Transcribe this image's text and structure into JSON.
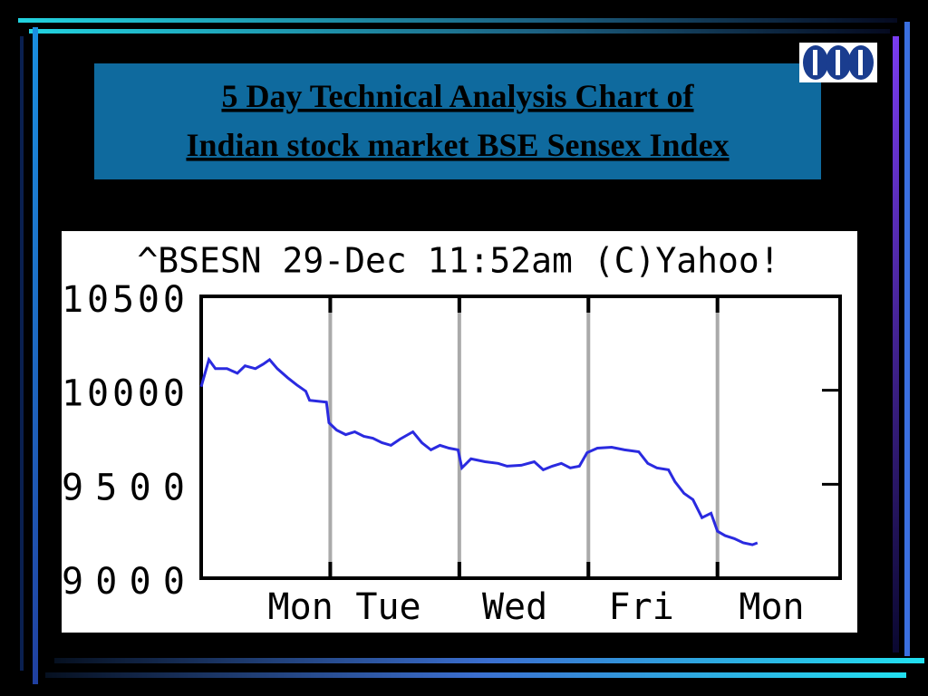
{
  "chart_data": {
    "type": "line",
    "title_lines": [
      "5 Day Technical Analysis Chart of",
      "Indian stock market BSE Sensex Index"
    ],
    "chart_header": "^BSESN 29-Dec 11:52am (C)Yahoo!",
    "xlim": [
      0,
      4.95
    ],
    "xticks": [
      {
        "value": 0.77,
        "label": "Mon"
      },
      {
        "value": 1.45,
        "label": "Tue"
      },
      {
        "value": 2.43,
        "label": "Wed"
      },
      {
        "value": 3.41,
        "label": "Fri"
      },
      {
        "value": 4.42,
        "label": "Mon"
      }
    ],
    "day_lines": [
      1,
      2,
      3,
      4
    ],
    "ylim": [
      9000,
      10500
    ],
    "yticks": [
      9000,
      9500,
      10000,
      10500
    ],
    "series": [
      {
        "color": "#2a2ae0",
        "x": [
          0,
          0.06,
          0.11,
          0.2,
          0.28,
          0.34,
          0.42,
          0.48,
          0.53,
          0.59,
          0.67,
          0.74,
          0.81,
          0.84,
          0.97,
          0.99,
          1.05,
          1.12,
          1.19,
          1.26,
          1.33,
          1.4,
          1.47,
          1.54,
          1.64,
          1.71,
          1.78,
          1.85,
          1.92,
          1.99,
          2.02,
          2.09,
          2.2,
          2.3,
          2.37,
          2.48,
          2.58,
          2.65,
          2.72,
          2.79,
          2.86,
          2.93,
          2.99,
          3.07,
          3.18,
          3.28,
          3.39,
          3.46,
          3.53,
          3.62,
          3.67,
          3.74,
          3.81,
          3.88,
          3.95,
          4,
          4.06,
          4.13,
          4.2,
          4.27,
          4.31
        ],
        "values": [
          10019,
          10163,
          10115,
          10115,
          10091,
          10130,
          10115,
          10139,
          10163,
          10115,
          10067,
          10029,
          9995,
          9947,
          9937,
          9827,
          9788,
          9764,
          9779,
          9755,
          9745,
          9721,
          9707,
          9740,
          9779,
          9721,
          9683,
          9707,
          9692,
          9683,
          9587,
          9635,
          9620,
          9611,
          9596,
          9601,
          9620,
          9577,
          9596,
          9611,
          9587,
          9596,
          9668,
          9692,
          9697,
          9683,
          9673,
          9611,
          9587,
          9577,
          9514,
          9452,
          9418,
          9322,
          9346,
          9250,
          9226,
          9211,
          9188,
          9178,
          9188
        ]
      }
    ]
  }
}
